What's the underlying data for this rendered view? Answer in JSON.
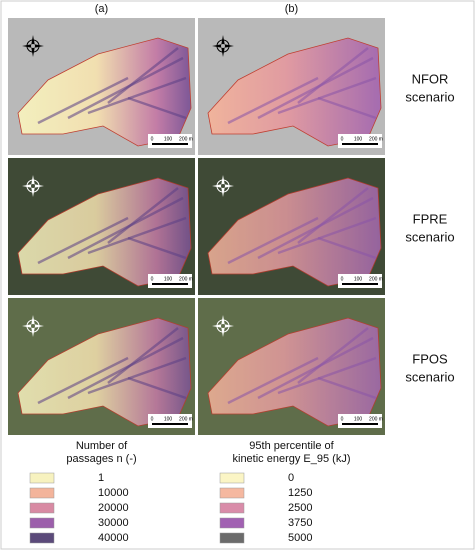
{
  "column_labels": [
    "(a)",
    "(b)"
  ],
  "scenarios": [
    [
      "NFOR",
      "scenario"
    ],
    [
      "FPRE",
      "scenario"
    ],
    [
      "FPOS",
      "scenario"
    ]
  ],
  "scale_bar": [
    "0",
    "100",
    "200 m"
  ],
  "legends": [
    {
      "title": [
        "Number of",
        "passages n (-)"
      ],
      "entries": [
        {
          "label": 1,
          "color": "#f7f2bf"
        },
        {
          "label": 10000,
          "color": "#f3b49b"
        },
        {
          "label": 20000,
          "color": "#d88aa3"
        },
        {
          "label": 30000,
          "color": "#9c5fab"
        },
        {
          "label": 40000,
          "color": "#5b4a7a"
        }
      ]
    },
    {
      "title": [
        "95th percentile of",
        "kinetic energy E_95 (kJ)"
      ],
      "entries": [
        {
          "label": 0,
          "color": "#fbf5c5"
        },
        {
          "label": 1250,
          "color": "#f5b8a0"
        },
        {
          "label": 2500,
          "color": "#d98ca9"
        },
        {
          "label": 3750,
          "color": "#a161b2"
        },
        {
          "label": 5000,
          "color": "#6b6b6b"
        }
      ]
    }
  ]
}
